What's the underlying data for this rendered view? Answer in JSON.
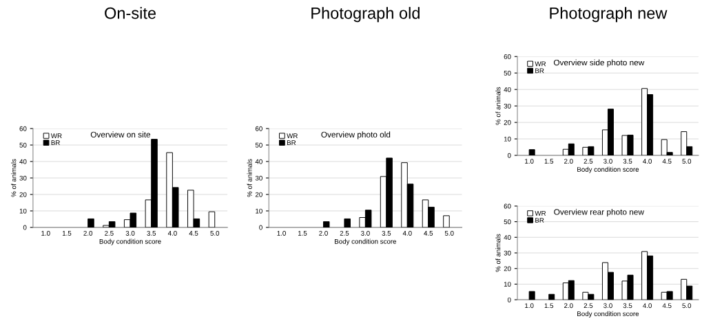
{
  "chart_data": [
    {
      "type": "bar",
      "subtitle": "On-site",
      "title": "Overview on site",
      "xlabel": "Body condition score",
      "ylabel": "% of animals",
      "categories": [
        "1.0",
        "1.5",
        "2.0",
        "2.5",
        "3.0",
        "3.5",
        "4.0",
        "4.5",
        "5.0"
      ],
      "series": [
        {
          "name": "WR",
          "color": "#ffffff",
          "values": [
            null,
            null,
            null,
            1.2,
            4.7,
            16.7,
            45.4,
            22.6,
            9.5
          ]
        },
        {
          "name": "BR",
          "color": "#000000",
          "values": [
            null,
            null,
            5.2,
            3.5,
            8.7,
            53.5,
            24.2,
            5.2,
            null
          ]
        }
      ],
      "ylim": [
        0,
        60
      ],
      "yticks": [
        0,
        10,
        20,
        30,
        40,
        50,
        60
      ],
      "grid": "y",
      "legend": "top left"
    },
    {
      "type": "bar",
      "subtitle": "Photograph old",
      "title": "Overview photo old",
      "xlabel": "Body condition score",
      "ylabel": "% of animals",
      "categories": [
        "1.0",
        "1.5",
        "2.0",
        "2.5",
        "3.0",
        "3.5",
        "4.0",
        "4.5",
        "5.0"
      ],
      "series": [
        {
          "name": "WR",
          "color": "#ffffff",
          "values": [
            null,
            null,
            null,
            null,
            6.0,
            30.9,
            39.3,
            16.7,
            7.1
          ]
        },
        {
          "name": "BR",
          "color": "#000000",
          "values": [
            null,
            null,
            3.5,
            5.2,
            10.5,
            42.1,
            26.3,
            12.3,
            null
          ]
        }
      ],
      "ylim": [
        0,
        60
      ],
      "yticks": [
        0,
        10,
        20,
        30,
        40,
        50,
        60
      ],
      "grid": "y",
      "legend": "top left"
    },
    {
      "type": "bar",
      "subtitle": "Photograph new",
      "title": "Overview side photo new",
      "xlabel": "Body condition score",
      "ylabel": "% of animals",
      "categories": [
        "1.0",
        "1.5",
        "2.0",
        "2.5",
        "3.0",
        "3.5",
        "4.0",
        "4.5",
        "5.0"
      ],
      "series": [
        {
          "name": "WR",
          "color": "#ffffff",
          "values": [
            null,
            null,
            3.7,
            4.9,
            15.5,
            12.1,
            40.6,
            9.6,
            14.4
          ]
        },
        {
          "name": "BR",
          "color": "#000000",
          "values": [
            3.5,
            null,
            7.0,
            5.3,
            28.1,
            12.3,
            36.9,
            1.8,
            5.3
          ]
        }
      ],
      "ylim": [
        0,
        60
      ],
      "yticks": [
        0,
        10,
        20,
        30,
        40,
        50,
        60
      ],
      "grid": "y",
      "legend": "top left"
    },
    {
      "type": "bar",
      "title": "Overview rear photo new",
      "xlabel": "Body condition score",
      "ylabel": "% of animals",
      "categories": [
        "1.0",
        "1.5",
        "2.0",
        "2.5",
        "3.0",
        "3.5",
        "4.0",
        "4.5",
        "5.0"
      ],
      "series": [
        {
          "name": "WR",
          "color": "#ffffff",
          "values": [
            null,
            null,
            10.8,
            4.8,
            23.8,
            12.0,
            30.9,
            4.8,
            13.1
          ]
        },
        {
          "name": "BR",
          "color": "#000000",
          "values": [
            5.3,
            3.5,
            12.3,
            3.5,
            17.6,
            15.8,
            28.1,
            5.3,
            8.8
          ]
        }
      ],
      "ylim": [
        0,
        60
      ],
      "yticks": [
        0,
        10,
        20,
        30,
        40,
        50,
        60
      ],
      "grid": "y",
      "legend": "top left"
    }
  ]
}
